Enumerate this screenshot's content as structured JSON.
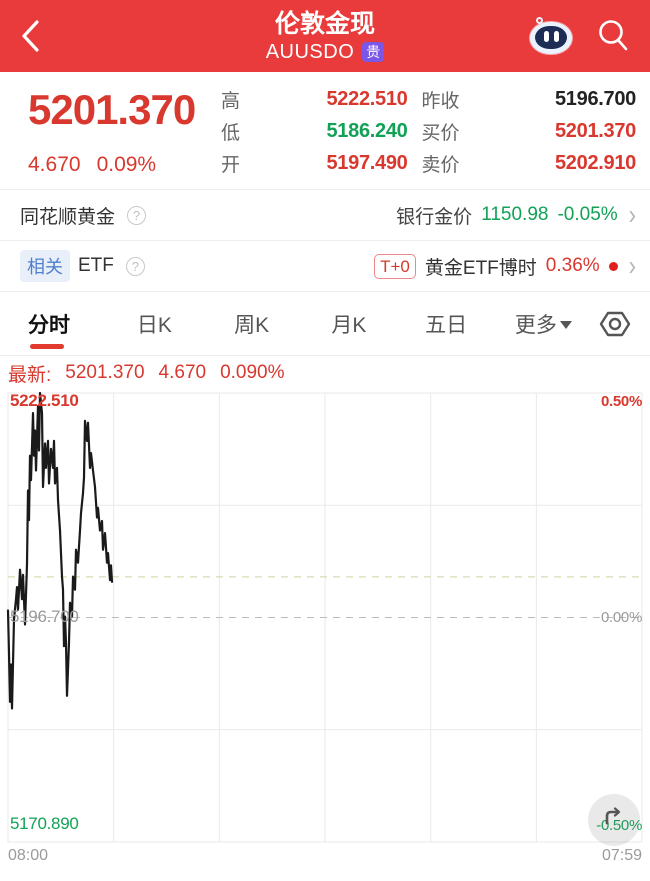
{
  "theme": {
    "red": "#d8382e",
    "green": "#11a256",
    "header_red": "#e93b3b",
    "purple": "#7b57e8",
    "line_color": "#1a1a1a",
    "grid_color": "#e9e9e9",
    "dash_mid_color": "#bbbbbb",
    "dash_now_color": "#cdd69c"
  },
  "header": {
    "title": "伦敦金现",
    "subtitle": "AUUSDO",
    "badge": "贵"
  },
  "quote": {
    "last": "5201.370",
    "change": "4.670",
    "change_pct": "0.09%",
    "stats": [
      {
        "label": "高",
        "value": "5222.510"
      },
      {
        "label": "昨收",
        "value": "5196.700"
      },
      {
        "label": "低",
        "value": "5186.240"
      },
      {
        "label": "买价",
        "value": "5201.370"
      },
      {
        "label": "开",
        "value": "5197.490"
      },
      {
        "label": "卖价",
        "value": "5202.910"
      }
    ]
  },
  "gold_row": {
    "left": "同花顺黄金",
    "right_label": "银行金价",
    "price": "1150.98",
    "change": "-0.05%"
  },
  "etf_row": {
    "tag": "相关",
    "left": "ETF",
    "badge": "T+0",
    "name": "黄金ETF博时",
    "change": "0.36%"
  },
  "tabs": {
    "items": [
      "分时",
      "日K",
      "周K",
      "月K",
      "五日",
      "更多"
    ],
    "active": "分时"
  },
  "latest": {
    "label": "最新:",
    "price": "5201.370",
    "change": "4.670",
    "pct": "0.090%"
  },
  "chart_data": {
    "type": "line",
    "title": "分时 (intraday) price of 伦敦金现 AUUSDO",
    "xlabel": "time",
    "ylabel": "price",
    "x_start_label": "08:00",
    "x_end_label": "07:59",
    "ylim": [
      5170.89,
      5222.51
    ],
    "y_axis_left_labels": [
      "5222.510",
      "5196.700",
      "5170.890"
    ],
    "y_axis_right_labels": [
      "0.50%",
      "0.00%",
      "-0.50%"
    ],
    "prev_close": 5196.7,
    "current_price": 5201.37,
    "grid": {
      "v_divisions": 6,
      "h_divisions": 4
    },
    "legend_position": "none",
    "series": [
      {
        "name": "price",
        "x_as_fraction_of_day": true,
        "points": [
          [
            0.0,
            5197.5
          ],
          [
            0.0016,
            5192.5
          ],
          [
            0.0032,
            5187.0
          ],
          [
            0.0047,
            5191.3
          ],
          [
            0.0063,
            5186.24
          ],
          [
            0.0095,
            5196.5
          ],
          [
            0.0126,
            5198.8
          ],
          [
            0.0142,
            5200.2
          ],
          [
            0.0158,
            5197.6
          ],
          [
            0.0189,
            5202.2
          ],
          [
            0.0221,
            5198.8
          ],
          [
            0.0237,
            5201.6
          ],
          [
            0.0268,
            5195.9
          ],
          [
            0.03,
            5202.8
          ],
          [
            0.0315,
            5211.3
          ],
          [
            0.0331,
            5207.9
          ],
          [
            0.0347,
            5215.3
          ],
          [
            0.0363,
            5212.5
          ],
          [
            0.0394,
            5220.2
          ],
          [
            0.041,
            5215.3
          ],
          [
            0.0426,
            5218.2
          ],
          [
            0.0442,
            5213.6
          ],
          [
            0.0473,
            5221.0
          ],
          [
            0.0489,
            5215.9
          ],
          [
            0.0505,
            5222.51
          ],
          [
            0.0536,
            5220.2
          ],
          [
            0.0552,
            5211.7
          ],
          [
            0.0584,
            5216.7
          ],
          [
            0.0599,
            5213.9
          ],
          [
            0.0631,
            5217.0
          ],
          [
            0.0647,
            5212.1
          ],
          [
            0.0678,
            5216.1
          ],
          [
            0.071,
            5213.9
          ],
          [
            0.0726,
            5217.0
          ],
          [
            0.0741,
            5212.1
          ],
          [
            0.0773,
            5213.9
          ],
          [
            0.0789,
            5210.2
          ],
          [
            0.082,
            5206.7
          ],
          [
            0.0852,
            5201.4
          ],
          [
            0.0868,
            5199.9
          ],
          [
            0.0883,
            5193.4
          ],
          [
            0.0899,
            5196.8
          ],
          [
            0.0915,
            5193.8
          ],
          [
            0.0931,
            5187.7
          ],
          [
            0.0962,
            5193.8
          ],
          [
            0.0978,
            5198.4
          ],
          [
            0.1009,
            5196.8
          ],
          [
            0.1025,
            5201.4
          ],
          [
            0.1057,
            5199.9
          ],
          [
            0.1073,
            5204.5
          ],
          [
            0.1104,
            5203.0
          ],
          [
            0.1136,
            5206.7
          ],
          [
            0.1151,
            5208.7
          ],
          [
            0.1183,
            5211.0
          ],
          [
            0.1199,
            5212.8
          ],
          [
            0.1215,
            5219.3
          ],
          [
            0.1246,
            5217.0
          ],
          [
            0.1262,
            5219.1
          ],
          [
            0.1293,
            5213.9
          ],
          [
            0.1309,
            5215.6
          ],
          [
            0.1341,
            5213.6
          ],
          [
            0.1372,
            5211.7
          ],
          [
            0.1404,
            5208.2
          ],
          [
            0.142,
            5209.3
          ],
          [
            0.1451,
            5206.7
          ],
          [
            0.1483,
            5207.8
          ],
          [
            0.1498,
            5204.5
          ],
          [
            0.153,
            5206.4
          ],
          [
            0.1562,
            5203.0
          ],
          [
            0.1577,
            5204.1
          ],
          [
            0.1609,
            5201.0
          ],
          [
            0.1625,
            5202.7
          ],
          [
            0.164,
            5200.8
          ]
        ]
      }
    ]
  }
}
